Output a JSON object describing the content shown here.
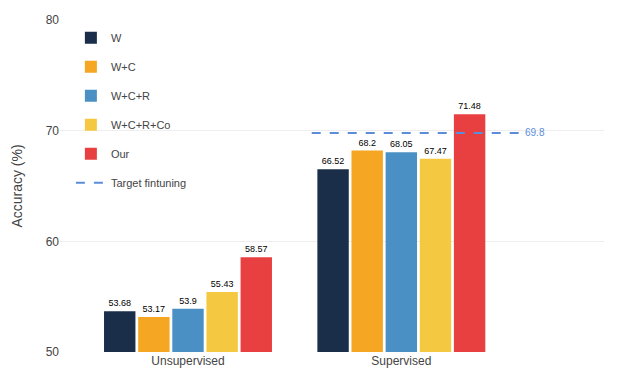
{
  "chart_data": {
    "type": "bar",
    "categories": [
      "Unsupervised",
      "Supervised"
    ],
    "series": [
      {
        "name": "W",
        "color": "#1a2e4a",
        "values": [
          53.68,
          66.52
        ]
      },
      {
        "name": "W+C",
        "color": "#f5a623",
        "values": [
          53.17,
          68.2
        ]
      },
      {
        "name": "W+C+R",
        "color": "#4a90c4",
        "values": [
          53.9,
          68.05
        ]
      },
      {
        "name": "W+C+R+Co",
        "color": "#f5c842",
        "values": [
          55.43,
          67.47
        ]
      },
      {
        "name": "Our",
        "color": "#e84040",
        "values": [
          58.57,
          71.48
        ]
      },
      {
        "name": "Target fintuning",
        "type": "hline",
        "line_style": "dashed",
        "color": "#5b8dd9",
        "values": [
          null,
          69.8
        ]
      }
    ],
    "ylabel": "Accuracy (%)",
    "ylim": [
      50,
      80
    ],
    "yticks": [
      50,
      60,
      70,
      80
    ],
    "grid": true,
    "legend": "upper left",
    "data_labels": true
  }
}
